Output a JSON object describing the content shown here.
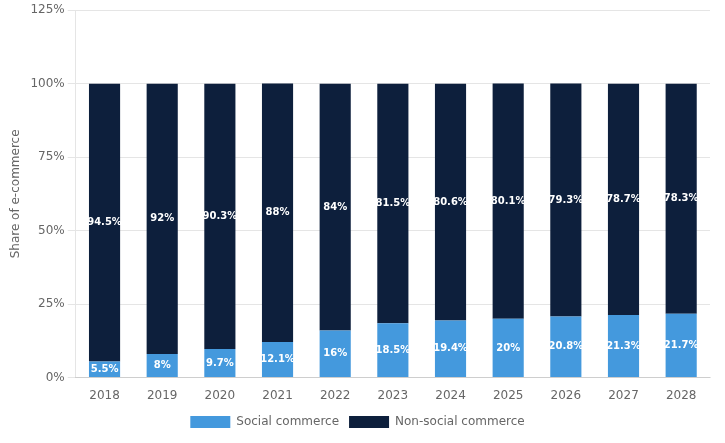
{
  "chart_data": {
    "type": "bar",
    "categories": [
      "2018",
      "2019",
      "2020",
      "2021",
      "2022",
      "2023",
      "2024",
      "2025",
      "2026",
      "2027",
      "2028"
    ],
    "series": [
      {
        "name": "Social commerce",
        "color": "#4499dd",
        "values": [
          5.5,
          8.0,
          9.7,
          12.1,
          16.0,
          18.5,
          19.4,
          20.0,
          20.8,
          21.3,
          21.7
        ],
        "value_labels": [
          "5.5%",
          "8%",
          "9.7%",
          "12.1%",
          "16%",
          "18.5%",
          "19.4%",
          "20%",
          "20.8%",
          "21.3%",
          "21.7%"
        ]
      },
      {
        "name": "Non-social commerce",
        "color": "#0d1f3c",
        "values": [
          94.5,
          92.0,
          90.3,
          88.0,
          84.0,
          81.5,
          80.6,
          80.1,
          79.3,
          78.7,
          78.3
        ],
        "value_labels": [
          "94.5%",
          "92%",
          "90.3%",
          "88%",
          "84%",
          "81.5%",
          "80.6%",
          "80.1%",
          "79.3%",
          "78.7%",
          "78.3%"
        ]
      }
    ],
    "ylabel": "Share of e-commerce",
    "ylim": [
      0,
      125
    ],
    "yticks": [
      {
        "value": 0,
        "label": "0%"
      },
      {
        "value": 25,
        "label": "25%"
      },
      {
        "value": 50,
        "label": "50%"
      },
      {
        "value": 75,
        "label": "75%"
      },
      {
        "value": 100,
        "label": "100%"
      },
      {
        "value": 125,
        "label": "125%"
      }
    ],
    "grid": true,
    "stacked": true,
    "data_labels": true,
    "legend": "bottom"
  }
}
